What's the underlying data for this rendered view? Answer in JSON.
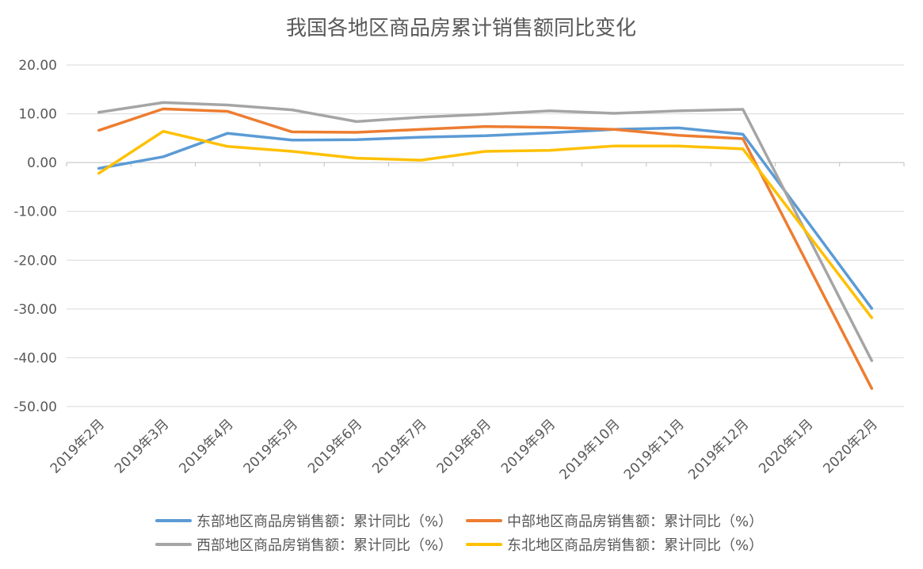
{
  "chart_data": {
    "type": "line",
    "title": "我国各地区商品房累计销售额同比变化",
    "categories": [
      "2019年2月",
      "2019年3月",
      "2019年4月",
      "2019年5月",
      "2019年6月",
      "2019年7月",
      "2019年8月",
      "2019年9月",
      "2019年10月",
      "2019年11月",
      "2019年12月",
      "2020年1月",
      "2020年2月"
    ],
    "ylim": [
      -50,
      20
    ],
    "yticks": [
      "20.00",
      "10.00",
      "0.00",
      "-10.00",
      "-20.00",
      "-30.00",
      "-40.00",
      "-50.00"
    ],
    "grid": true,
    "legend_position": "bottom",
    "series": [
      {
        "name": "东部地区商品房销售额：累计同比（%）",
        "color": "#5b9bd5",
        "values": [
          -1.2,
          1.2,
          6.0,
          4.6,
          4.7,
          5.2,
          5.5,
          6.1,
          6.8,
          7.1,
          5.8,
          null,
          -29.9
        ]
      },
      {
        "name": "中部地区商品房销售额：累计同比（%）",
        "color": "#ed7d31",
        "values": [
          6.6,
          11.0,
          10.5,
          6.3,
          6.2,
          6.8,
          7.4,
          7.2,
          6.8,
          5.6,
          4.9,
          null,
          -46.3
        ]
      },
      {
        "name": "西部地区商品房销售额：累计同比（%）",
        "color": "#a5a5a5",
        "values": [
          10.3,
          12.3,
          11.8,
          10.8,
          8.4,
          9.3,
          9.9,
          10.6,
          10.1,
          10.6,
          10.9,
          null,
          -40.6
        ]
      },
      {
        "name": "东北地区商品房销售额：累计同比（%）",
        "color": "#ffc000",
        "values": [
          -2.2,
          6.4,
          3.3,
          2.3,
          0.9,
          0.5,
          2.3,
          2.5,
          3.4,
          3.4,
          2.8,
          null,
          -31.8
        ]
      }
    ]
  }
}
